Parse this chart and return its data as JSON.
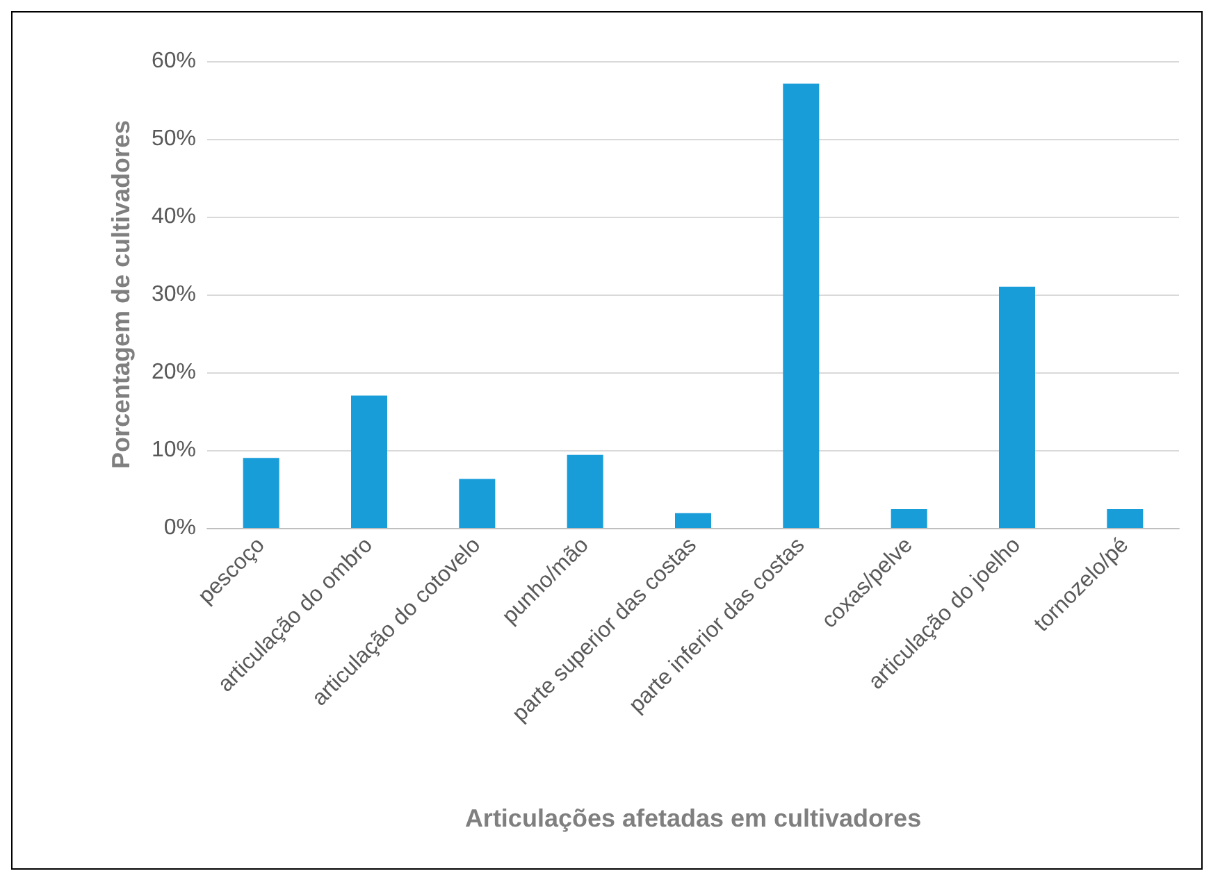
{
  "chart_data": {
    "type": "bar",
    "xlabel": "Articulações afetadas em cultivadores",
    "ylabel": "Porcentagem de cultivadores",
    "categories": [
      "pescoço",
      "articulação do ombro",
      "articulação do cotovelo",
      "punho/mão",
      "parte superior das costas",
      "parte inferior das costas",
      "coxas/pelve",
      "articulação do joelho",
      "tornozelo/pé"
    ],
    "values": [
      9,
      17,
      6.3,
      9.4,
      1.9,
      57.1,
      2.4,
      31,
      2.4
    ],
    "color": "#199dd9",
    "ylim": [
      0,
      60
    ],
    "yticks": [
      {
        "value": 0,
        "label": "0%"
      },
      {
        "value": 10,
        "label": "10%"
      },
      {
        "value": 20,
        "label": "20%"
      },
      {
        "value": 30,
        "label": "30%"
      },
      {
        "value": 40,
        "label": "40%"
      },
      {
        "value": 50,
        "label": "50%"
      },
      {
        "value": 60,
        "label": "60%"
      }
    ],
    "grid": "y"
  }
}
